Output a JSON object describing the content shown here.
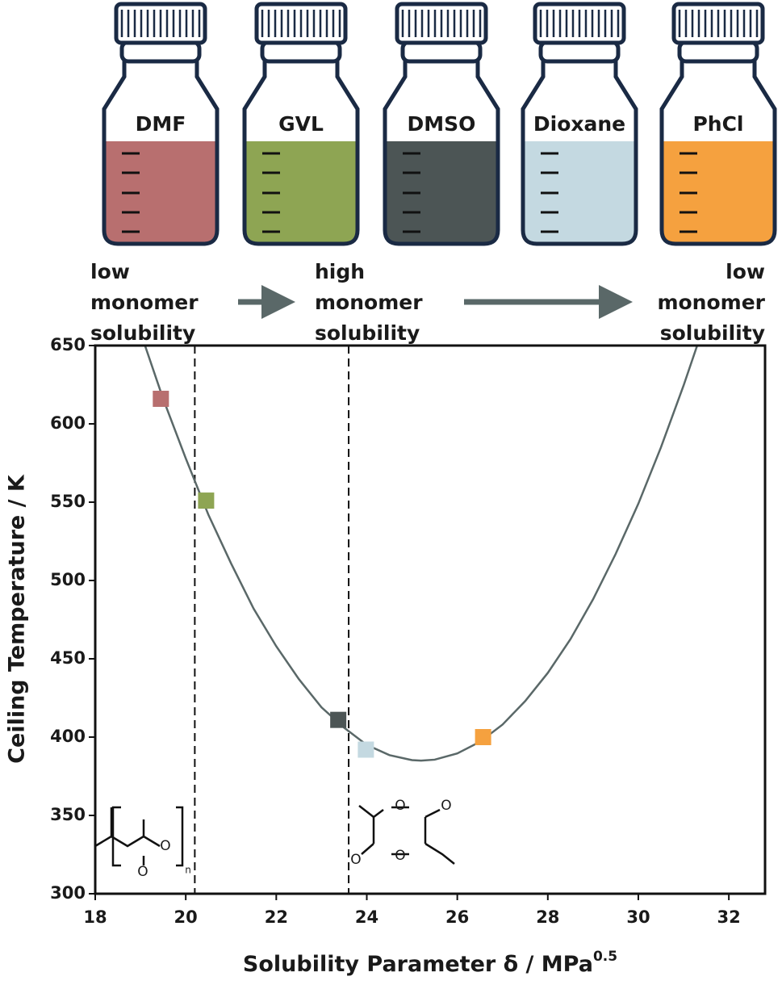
{
  "chart_data": {
    "type": "scatter",
    "xlabel": {
      "text": "Solubility Parameter δ / MPa",
      "sup": "0.5"
    },
    "ylabel": "Ceiling Temperature / K",
    "xlim": [
      18,
      32.8
    ],
    "ylim": [
      300,
      650
    ],
    "xticks": [
      18,
      20,
      22,
      24,
      26,
      28,
      30,
      32
    ],
    "yticks": [
      300,
      350,
      400,
      450,
      500,
      550,
      600,
      650
    ],
    "series": [
      {
        "name": "DMF",
        "color": "#b86f6f",
        "x": [
          19.45
        ],
        "values": [
          616
        ]
      },
      {
        "name": "GVL",
        "color": "#8ea553",
        "x": [
          20.45
        ],
        "values": [
          551
        ]
      },
      {
        "name": "DMSO",
        "color": "#4c5555",
        "x": [
          23.37
        ],
        "values": [
          411
        ]
      },
      {
        "name": "Dioxane",
        "color": "#c4d9e1",
        "x": [
          23.98
        ],
        "values": [
          392
        ]
      },
      {
        "name": "PhCl",
        "color": "#f5a13f",
        "x": [
          26.57
        ],
        "values": [
          400
        ]
      }
    ],
    "fit": {
      "color": "#5a6868",
      "x": [
        19.1,
        19.5,
        20,
        20.5,
        21,
        21.5,
        22,
        22.5,
        23,
        23.5,
        24,
        24.5,
        25,
        25.2,
        25.5,
        26,
        26.5,
        27,
        27.5,
        28,
        28.5,
        29,
        29.5,
        30,
        30.5,
        31,
        31.3
      ],
      "values": [
        650,
        616,
        578,
        542,
        511,
        482,
        458,
        437,
        419,
        406,
        395,
        388.5,
        385.3,
        385,
        385.6,
        389.6,
        397,
        408,
        423,
        441,
        462.5,
        488,
        517,
        549,
        585,
        624.5,
        650
      ]
    },
    "vlines": [
      20.2,
      23.6
    ],
    "annotations": [
      [
        "low",
        "monomer",
        "solubility"
      ],
      [
        "high",
        "monomer",
        "solubility"
      ],
      [
        "low",
        "monomer",
        "solubility"
      ]
    ],
    "structure_labels": {
      "polymer": [
        "O",
        "O",
        "n"
      ],
      "monomer": [
        "O",
        "O",
        "O",
        "O"
      ]
    }
  }
}
